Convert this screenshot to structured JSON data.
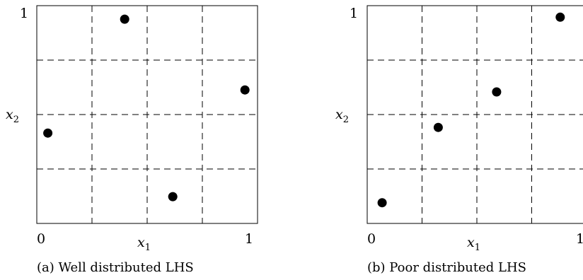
{
  "panels": [
    {
      "caption": "(a) Well distributed LHS",
      "x_axis": {
        "label": "x",
        "subscript": "1",
        "min_label": "0",
        "max_label": "1"
      },
      "y_axis": {
        "label": "x",
        "subscript": "2",
        "max_label": "1"
      },
      "grid_divisions": 4,
      "points": [
        {
          "x": 0.05,
          "y": 0.415
        },
        {
          "x": 0.398,
          "y": 0.938
        },
        {
          "x": 0.616,
          "y": 0.123
        },
        {
          "x": 0.943,
          "y": 0.613
        }
      ]
    },
    {
      "caption": "(b) Poor distributed LHS",
      "x_axis": {
        "label": "x",
        "subscript": "1",
        "min_label": "0",
        "max_label": "1"
      },
      "y_axis": {
        "label": "x",
        "subscript": "2",
        "max_label": "1"
      },
      "grid_divisions": 4,
      "points": [
        {
          "x": 0.068,
          "y": 0.095
        },
        {
          "x": 0.324,
          "y": 0.441
        },
        {
          "x": 0.59,
          "y": 0.604
        },
        {
          "x": 0.88,
          "y": 0.947
        }
      ]
    }
  ],
  "colors": {
    "frame": "#000000",
    "grid": "#000000",
    "point": "#000000"
  }
}
